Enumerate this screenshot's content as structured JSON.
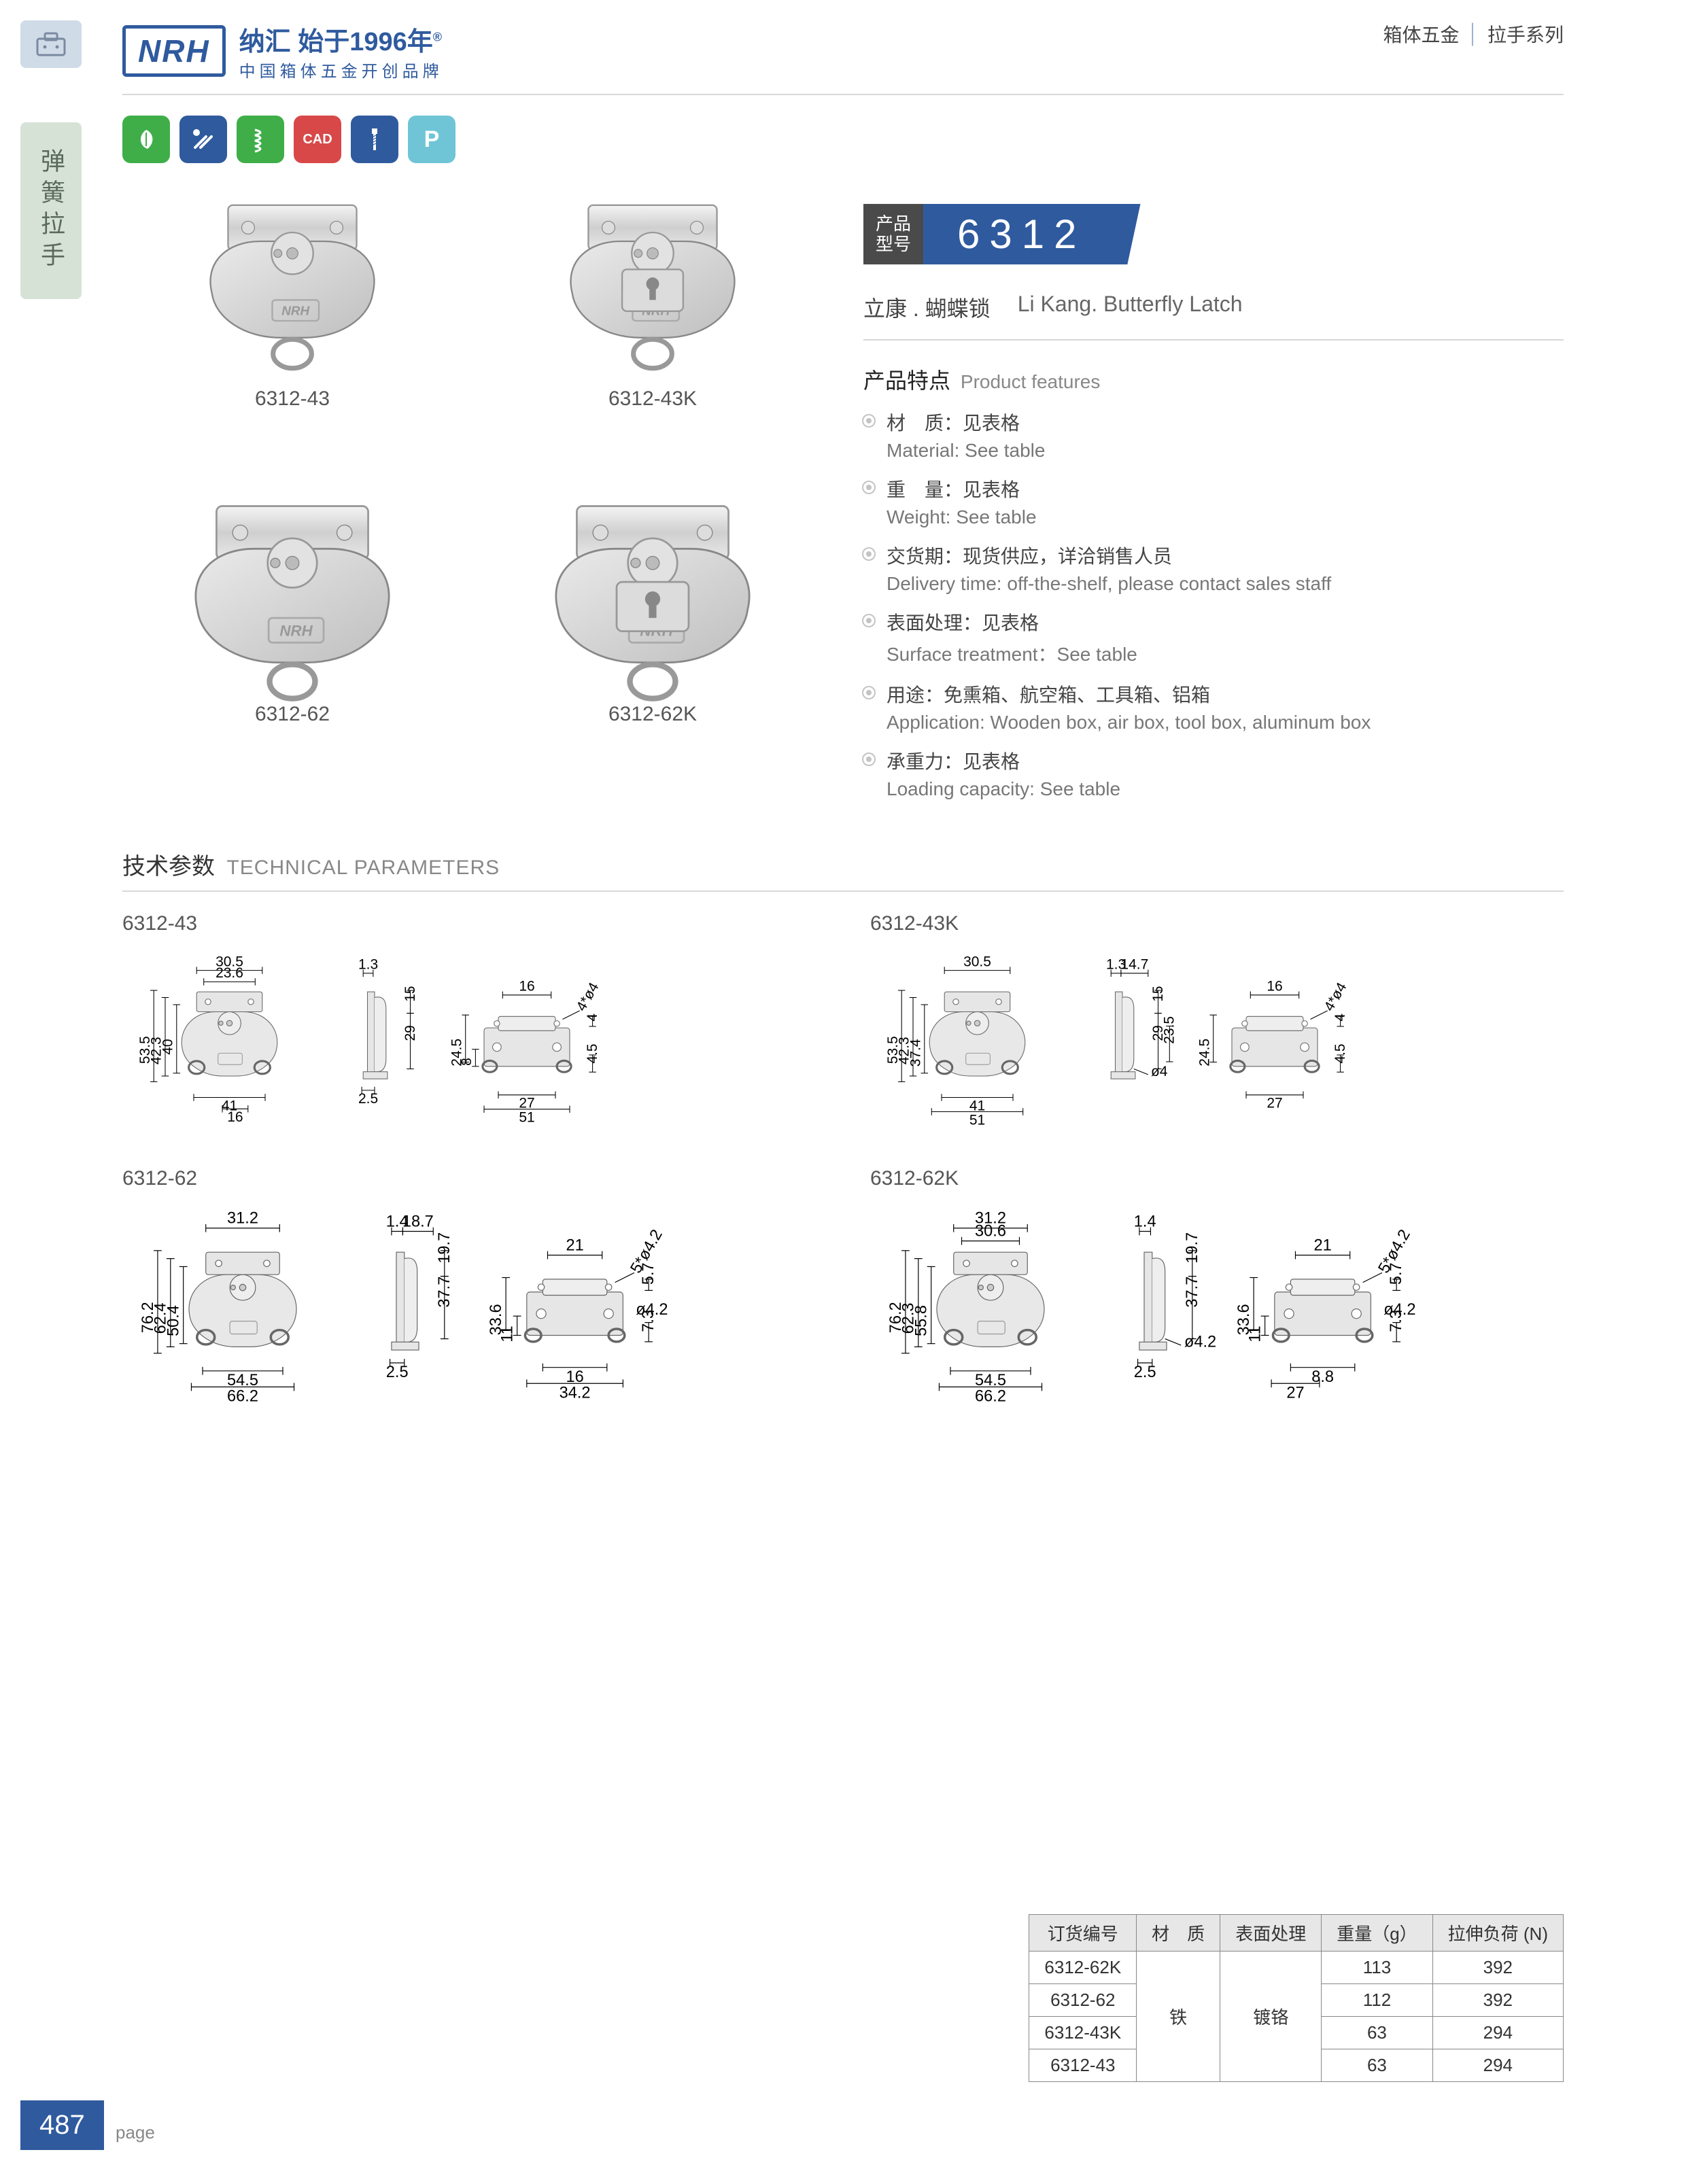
{
  "header": {
    "logo": "NRH",
    "brand_line1": "纳汇 始于1996年",
    "brand_reg": "®",
    "brand_line2": "中国箱体五金开创品牌",
    "category_a": "箱体五金",
    "category_b": "拉手系列"
  },
  "side_tab": "弹簧拉手",
  "icons": [
    {
      "bg": "#3fae49",
      "glyph": "leaf"
    },
    {
      "bg": "#2f5a9e",
      "glyph": "tools"
    },
    {
      "bg": "#3fae49",
      "glyph": "spring"
    },
    {
      "bg": "#d84848",
      "glyph": "CAD"
    },
    {
      "bg": "#2f5a9e",
      "glyph": "screw"
    },
    {
      "bg": "#6fc5d6",
      "glyph": "P"
    }
  ],
  "gallery": [
    {
      "label": "6312-43"
    },
    {
      "label": "6312-43K"
    },
    {
      "label": "6312-62"
    },
    {
      "label": "6312-62K"
    }
  ],
  "model": {
    "label_line1": "产品",
    "label_line2": "型号",
    "number": "6312",
    "subtitle_cn": "立康 . 蝴蝶锁",
    "subtitle_en": "Li Kang. Butterfly Latch"
  },
  "features": {
    "title_cn": "产品特点",
    "title_en": "Product features",
    "items": [
      {
        "cn": "材　质：见表格",
        "en": "Material: See table"
      },
      {
        "cn": "重　量：见表格",
        "en": "Weight: See table"
      },
      {
        "cn": "交货期：现货供应，详洽销售人员",
        "en": "Delivery time: off-the-shelf, please contact sales staff"
      },
      {
        "cn": "表面处理：见表格",
        "en": "Surface treatment：See table"
      },
      {
        "cn": "用途：免熏箱、航空箱、工具箱、铝箱",
        "en": "Application: Wooden box, air box, tool box, aluminum box"
      },
      {
        "cn": "承重力：见表格",
        "en": "Loading capacity: See table"
      }
    ]
  },
  "tech": {
    "title_cn": "技术参数",
    "title_en": "TECHNICAL PARAMETERS",
    "drawings": [
      {
        "label": "6312-43",
        "dims": {
          "w": "30.5",
          "w2": "23.6",
          "h": "53.5",
          "h2": "42.3",
          "h3": "40",
          "bw": "41",
          "sp": "1.3",
          "sh": "15",
          "sr": "29",
          "br": "16",
          "tw": "16",
          "th": "24.5",
          "tb": "8",
          "tbw": "27",
          "tfw": "51",
          "r": "4*ø4",
          "rh": "4",
          "tside": "4.5",
          "g": "2.5"
        }
      },
      {
        "label": "6312-43K",
        "dims": {
          "w": "30.5",
          "h": "53.5",
          "h2": "42.3",
          "h3": "37.4",
          "bw": "41",
          "bfw": "51",
          "sp": "1.3",
          "sp2": "14.7",
          "sh": "15",
          "sr": "29",
          "sr2": "23.5",
          "d": "ø4",
          "tw": "16",
          "th": "24.5",
          "tbw": "27",
          "r": "4*ø4",
          "rh": "4",
          "tside": "4.5"
        }
      },
      {
        "label": "6312-62",
        "dims": {
          "w": "31.2",
          "h": "76.2",
          "h2": "62.4",
          "h3": "50.4",
          "bw": "54.5",
          "bfw": "66.2",
          "sp": "1.4",
          "sp2": "18.7",
          "sh": "19.7",
          "sr": "37.7",
          "tw": "21",
          "th": "33.6",
          "tb": "11",
          "tbw": "16",
          "tfw": "34.2",
          "r": "5*ø4.2",
          "rh": "5.7",
          "tside": "7.3",
          "g": "2.5"
        }
      },
      {
        "label": "6312-62K",
        "dims": {
          "w": "31.2",
          "w2": "30.6",
          "h": "76.2",
          "h2": "62.3",
          "h3": "55.8",
          "bw": "54.5",
          "bfw": "66.2",
          "sp": "1.4",
          "sh": "19.7",
          "sr": "37.7",
          "d": "ø4.2",
          "tw": "21",
          "th": "33.6",
          "tb": "11",
          "tbw": "8.8",
          "r": "5*ø4.2",
          "rh": "5.7",
          "tside": "7.3",
          "g": "2.5",
          "g2": "27"
        }
      }
    ]
  },
  "table": {
    "columns": [
      "订货编号",
      "材　质",
      "表面处理",
      "重量（g）",
      "拉伸负荷 (N)"
    ],
    "material": "铁",
    "surface": "镀铬",
    "rows": [
      {
        "code": "6312-62K",
        "weight": "113",
        "load": "392"
      },
      {
        "code": "6312-62",
        "weight": "112",
        "load": "392"
      },
      {
        "code": "6312-43K",
        "weight": "63",
        "load": "294"
      },
      {
        "code": "6312-43",
        "weight": "63",
        "load": "294"
      }
    ]
  },
  "page_number": "487",
  "page_label": "page"
}
